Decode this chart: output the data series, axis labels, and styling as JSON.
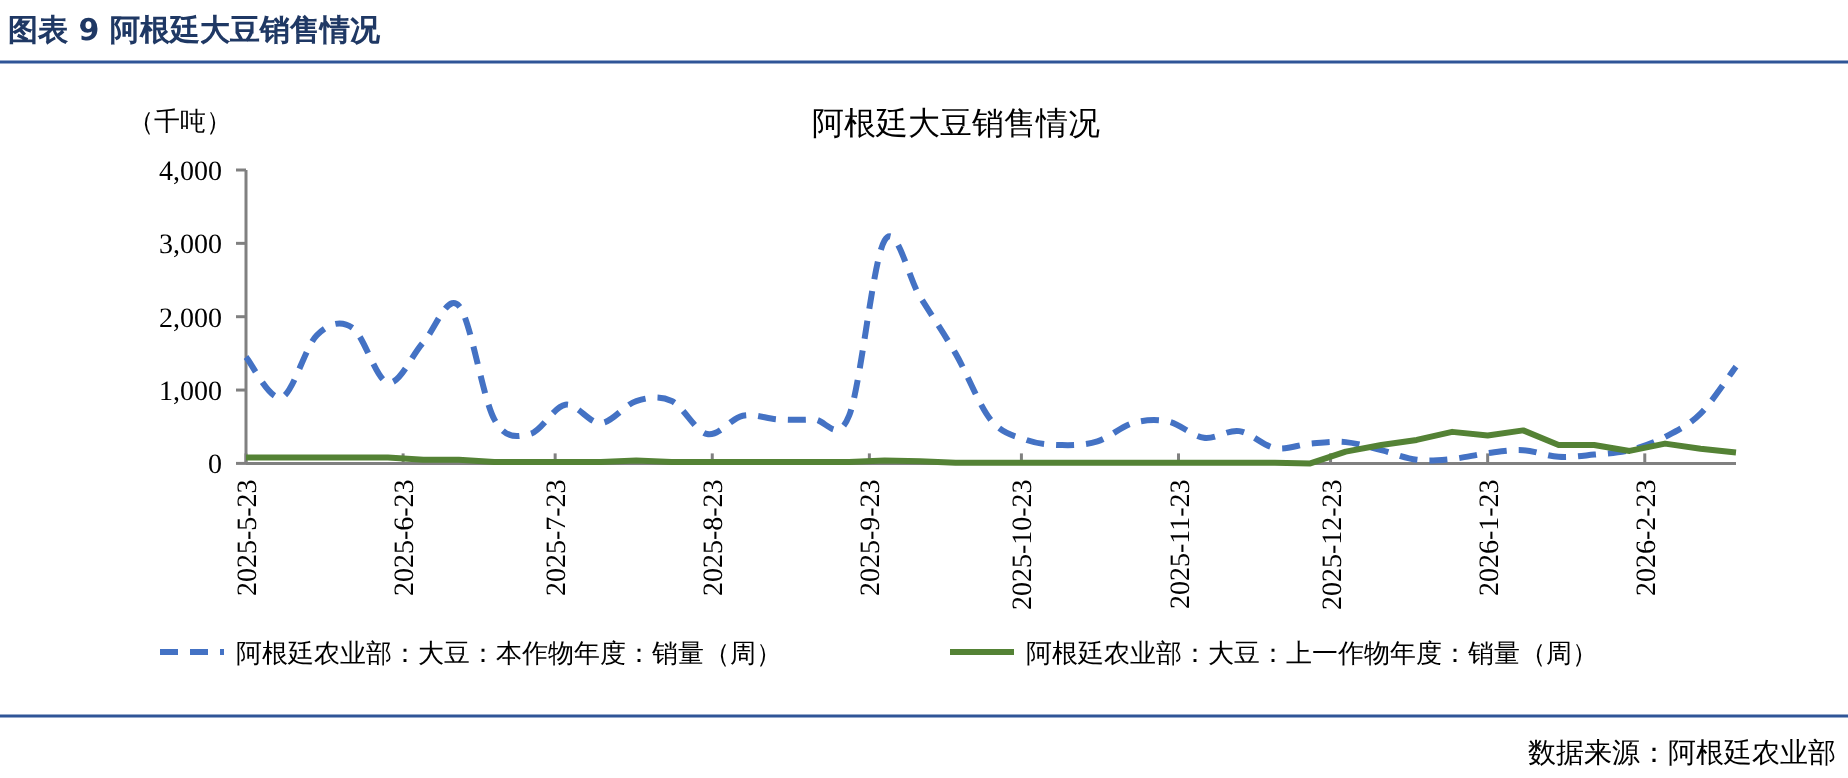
{
  "chart_data": {
    "type": "line",
    "title": "图表 9  阿根廷大豆销售情况",
    "subtitle": "阿根廷大豆销售情况",
    "ylabel": "（千吨）",
    "annotations": [
      "数据来源：阿根廷农业部"
    ],
    "x": [
      "2025-05-23",
      "2025-05-30",
      "2025-06-06",
      "2025-06-13",
      "2025-06-20",
      "2025-06-27",
      "2025-07-04",
      "2025-07-11",
      "2025-07-18",
      "2025-07-25",
      "2025-08-01",
      "2025-08-08",
      "2025-08-15",
      "2025-08-22",
      "2025-08-29",
      "2025-09-05",
      "2025-09-12",
      "2025-09-19",
      "2025-09-26",
      "2025-10-03",
      "2025-10-10",
      "2025-10-17",
      "2025-10-24",
      "2025-10-31",
      "2025-11-07",
      "2025-11-14",
      "2025-11-21",
      "2025-11-28",
      "2025-12-05",
      "2025-12-12",
      "2025-12-19",
      "2025-12-26",
      "2026-01-02",
      "2026-01-09",
      "2026-01-16",
      "2026-01-23",
      "2026-01-30",
      "2026-02-06",
      "2026-02-13",
      "2026-02-20",
      "2026-02-27",
      "2026-03-06",
      "2026-03-13"
    ],
    "series": [
      {
        "name": "阿根廷农业部：大豆：本作物年度：销量（周）",
        "color": "#4472c4",
        "line_style": "dashed",
        "values": [
          1450,
          900,
          1750,
          1850,
          1100,
          1650,
          2150,
          600,
          400,
          800,
          550,
          850,
          850,
          400,
          650,
          600,
          600,
          650,
          3040,
          2270,
          1500,
          590,
          320,
          250,
          300,
          550,
          570,
          350,
          440,
          210,
          270,
          290,
          180,
          50,
          60,
          140,
          180,
          90,
          120,
          180,
          360,
          680,
          1320
        ]
      },
      {
        "name": "阿根廷农业部：大豆：上一作物年度：销量（周）",
        "color": "#548235",
        "line_style": "solid",
        "values": [
          80,
          80,
          80,
          80,
          80,
          50,
          50,
          20,
          20,
          20,
          20,
          40,
          20,
          20,
          20,
          20,
          20,
          20,
          40,
          30,
          10,
          10,
          10,
          10,
          10,
          10,
          10,
          10,
          10,
          10,
          0,
          160,
          250,
          320,
          430,
          380,
          450,
          250,
          250,
          170,
          270,
          200,
          150
        ]
      }
    ],
    "xlim": [
      "2025-05-23",
      "2026-03-13"
    ],
    "xticks": [
      {
        "value": "2025-05-23",
        "label": "2025-5-23"
      },
      {
        "value": "2025-06-23",
        "label": "2025-6-23"
      },
      {
        "value": "2025-07-23",
        "label": "2025-7-23"
      },
      {
        "value": "2025-08-23",
        "label": "2025-8-23"
      },
      {
        "value": "2025-09-23",
        "label": "2025-9-23"
      },
      {
        "value": "2025-10-23",
        "label": "2025-10-23"
      },
      {
        "value": "2025-11-23",
        "label": "2025-11-23"
      },
      {
        "value": "2025-12-23",
        "label": "2025-12-23"
      },
      {
        "value": "2026-01-23",
        "label": "2026-1-23"
      },
      {
        "value": "2026-02-23",
        "label": "2026-2-23"
      }
    ],
    "ylim": [
      0,
      4000
    ],
    "yticks": [
      0,
      {
        "value": 1000,
        "label": "1,000"
      },
      {
        "value": 2000,
        "label": "2,000"
      },
      {
        "value": 3000,
        "label": "3,000"
      },
      {
        "value": 4000,
        "label": "4,000"
      }
    ],
    "grid": false,
    "legend": "bottom"
  }
}
